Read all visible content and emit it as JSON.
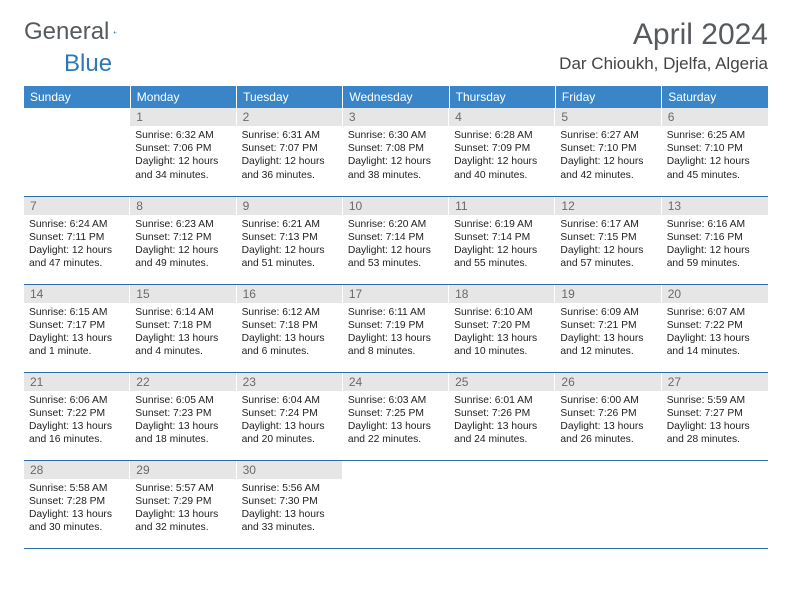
{
  "brand": {
    "part1": "General",
    "part2": "Blue"
  },
  "title": "April 2024",
  "location": "Dar Chioukh, Djelfa, Algeria",
  "colors": {
    "header_bg": "#3a85c8",
    "header_text": "#ffffff",
    "daynum_bg": "#e6e6e6",
    "daynum_text": "#6a6a6a",
    "rule": "#2e6ea8",
    "brand_gray": "#555a5e",
    "brand_blue": "#2f78b7"
  },
  "weekdays": [
    "Sunday",
    "Monday",
    "Tuesday",
    "Wednesday",
    "Thursday",
    "Friday",
    "Saturday"
  ],
  "weeks": [
    [
      null,
      {
        "n": "1",
        "sr": "6:32 AM",
        "ss": "7:06 PM",
        "dl": "12 hours and 34 minutes."
      },
      {
        "n": "2",
        "sr": "6:31 AM",
        "ss": "7:07 PM",
        "dl": "12 hours and 36 minutes."
      },
      {
        "n": "3",
        "sr": "6:30 AM",
        "ss": "7:08 PM",
        "dl": "12 hours and 38 minutes."
      },
      {
        "n": "4",
        "sr": "6:28 AM",
        "ss": "7:09 PM",
        "dl": "12 hours and 40 minutes."
      },
      {
        "n": "5",
        "sr": "6:27 AM",
        "ss": "7:10 PM",
        "dl": "12 hours and 42 minutes."
      },
      {
        "n": "6",
        "sr": "6:25 AM",
        "ss": "7:10 PM",
        "dl": "12 hours and 45 minutes."
      }
    ],
    [
      {
        "n": "7",
        "sr": "6:24 AM",
        "ss": "7:11 PM",
        "dl": "12 hours and 47 minutes."
      },
      {
        "n": "8",
        "sr": "6:23 AM",
        "ss": "7:12 PM",
        "dl": "12 hours and 49 minutes."
      },
      {
        "n": "9",
        "sr": "6:21 AM",
        "ss": "7:13 PM",
        "dl": "12 hours and 51 minutes."
      },
      {
        "n": "10",
        "sr": "6:20 AM",
        "ss": "7:14 PM",
        "dl": "12 hours and 53 minutes."
      },
      {
        "n": "11",
        "sr": "6:19 AM",
        "ss": "7:14 PM",
        "dl": "12 hours and 55 minutes."
      },
      {
        "n": "12",
        "sr": "6:17 AM",
        "ss": "7:15 PM",
        "dl": "12 hours and 57 minutes."
      },
      {
        "n": "13",
        "sr": "6:16 AM",
        "ss": "7:16 PM",
        "dl": "12 hours and 59 minutes."
      }
    ],
    [
      {
        "n": "14",
        "sr": "6:15 AM",
        "ss": "7:17 PM",
        "dl": "13 hours and 1 minute."
      },
      {
        "n": "15",
        "sr": "6:14 AM",
        "ss": "7:18 PM",
        "dl": "13 hours and 4 minutes."
      },
      {
        "n": "16",
        "sr": "6:12 AM",
        "ss": "7:18 PM",
        "dl": "13 hours and 6 minutes."
      },
      {
        "n": "17",
        "sr": "6:11 AM",
        "ss": "7:19 PM",
        "dl": "13 hours and 8 minutes."
      },
      {
        "n": "18",
        "sr": "6:10 AM",
        "ss": "7:20 PM",
        "dl": "13 hours and 10 minutes."
      },
      {
        "n": "19",
        "sr": "6:09 AM",
        "ss": "7:21 PM",
        "dl": "13 hours and 12 minutes."
      },
      {
        "n": "20",
        "sr": "6:07 AM",
        "ss": "7:22 PM",
        "dl": "13 hours and 14 minutes."
      }
    ],
    [
      {
        "n": "21",
        "sr": "6:06 AM",
        "ss": "7:22 PM",
        "dl": "13 hours and 16 minutes."
      },
      {
        "n": "22",
        "sr": "6:05 AM",
        "ss": "7:23 PM",
        "dl": "13 hours and 18 minutes."
      },
      {
        "n": "23",
        "sr": "6:04 AM",
        "ss": "7:24 PM",
        "dl": "13 hours and 20 minutes."
      },
      {
        "n": "24",
        "sr": "6:03 AM",
        "ss": "7:25 PM",
        "dl": "13 hours and 22 minutes."
      },
      {
        "n": "25",
        "sr": "6:01 AM",
        "ss": "7:26 PM",
        "dl": "13 hours and 24 minutes."
      },
      {
        "n": "26",
        "sr": "6:00 AM",
        "ss": "7:26 PM",
        "dl": "13 hours and 26 minutes."
      },
      {
        "n": "27",
        "sr": "5:59 AM",
        "ss": "7:27 PM",
        "dl": "13 hours and 28 minutes."
      }
    ],
    [
      {
        "n": "28",
        "sr": "5:58 AM",
        "ss": "7:28 PM",
        "dl": "13 hours and 30 minutes."
      },
      {
        "n": "29",
        "sr": "5:57 AM",
        "ss": "7:29 PM",
        "dl": "13 hours and 32 minutes."
      },
      {
        "n": "30",
        "sr": "5:56 AM",
        "ss": "7:30 PM",
        "dl": "13 hours and 33 minutes."
      },
      null,
      null,
      null,
      null
    ]
  ],
  "labels": {
    "sunrise": "Sunrise:",
    "sunset": "Sunset:",
    "daylight": "Daylight:"
  }
}
